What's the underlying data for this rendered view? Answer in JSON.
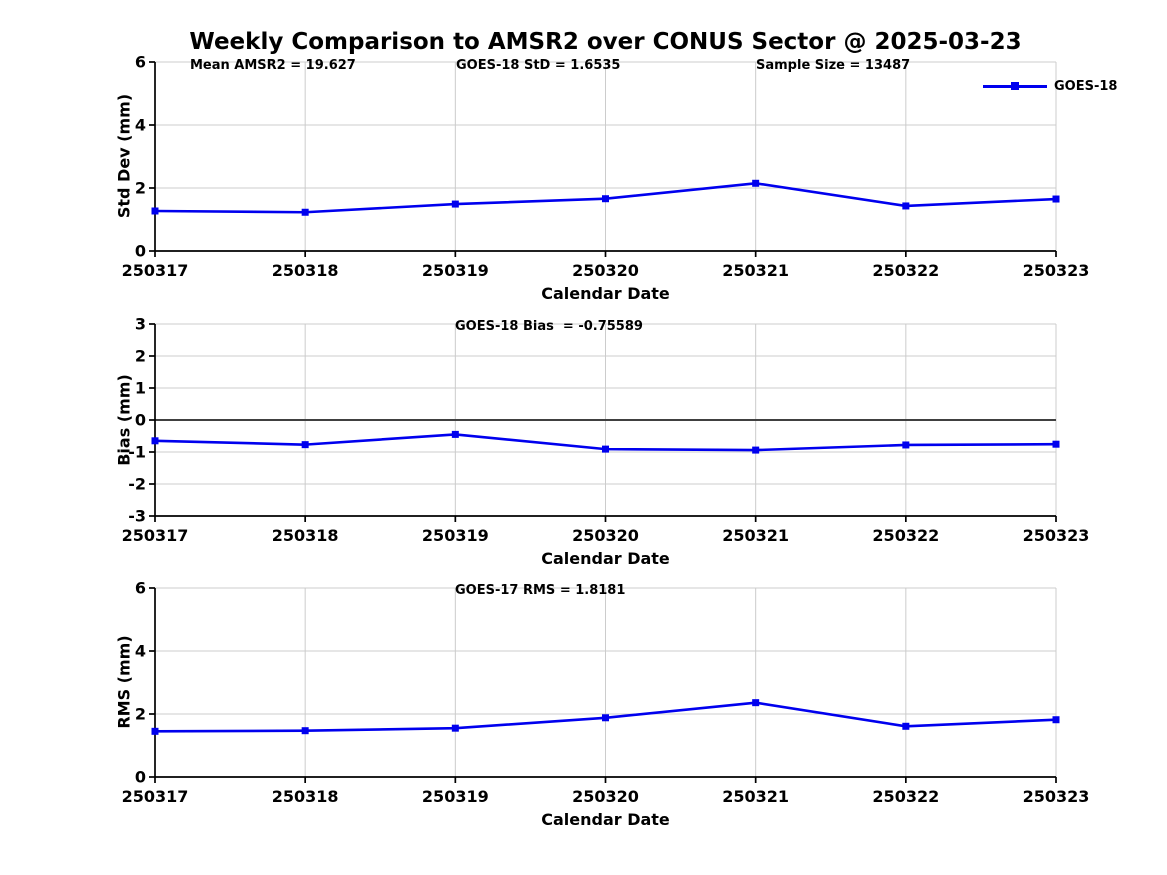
{
  "title": "Weekly Comparison to AMSR2 over CONUS Sector @ 2025-03-23",
  "legend": {
    "label": "GOES-18"
  },
  "colors": {
    "line": "#0000EE",
    "grid": "#cccccc",
    "axis": "#000000",
    "zero_line": "#404040",
    "background": "#ffffff"
  },
  "chart_data": {
    "type": "line",
    "x_categories": [
      "250317",
      "250318",
      "250319",
      "250320",
      "250321",
      "250322",
      "250323"
    ],
    "xlabel": "Calendar Date",
    "legend_position": "upper right, frameless",
    "grid": true,
    "marker": "square",
    "plots": [
      {
        "name": "std-dev",
        "ylabel": "Std Dev (mm)",
        "ylim": [
          0,
          6
        ],
        "yticks": [
          0,
          2,
          4,
          6
        ],
        "zero_line": false,
        "annotations": [
          {
            "text": "Mean AMSR2 = 19.627"
          },
          {
            "text": "GOES-18 StD = 1.6535"
          },
          {
            "text": "Sample Size = 13487"
          }
        ],
        "series": [
          {
            "name": "GOES-18",
            "values": [
              1.27,
              1.23,
              1.49,
              1.66,
              2.15,
              1.43,
              1.65
            ]
          }
        ]
      },
      {
        "name": "bias",
        "ylabel": "Bias (mm)",
        "ylim": [
          -3,
          3
        ],
        "yticks": [
          3,
          2,
          1,
          0,
          -1,
          -2,
          -3
        ],
        "zero_line": true,
        "annotations": [
          {
            "text": "GOES-18 Bias  = -0.75589"
          }
        ],
        "series": [
          {
            "name": "GOES-18",
            "values": [
              -0.65,
              -0.77,
              -0.45,
              -0.91,
              -0.94,
              -0.78,
              -0.756
            ]
          }
        ]
      },
      {
        "name": "rms",
        "ylabel": "RMS (mm)",
        "ylim": [
          0,
          6
        ],
        "yticks": [
          0,
          2,
          4,
          6
        ],
        "zero_line": false,
        "annotations": [
          {
            "text": "GOES-17 RMS = 1.8181"
          }
        ],
        "series": [
          {
            "name": "GOES-18",
            "values": [
              1.45,
              1.47,
              1.55,
              1.88,
              2.36,
              1.61,
              1.818
            ]
          }
        ]
      }
    ]
  }
}
